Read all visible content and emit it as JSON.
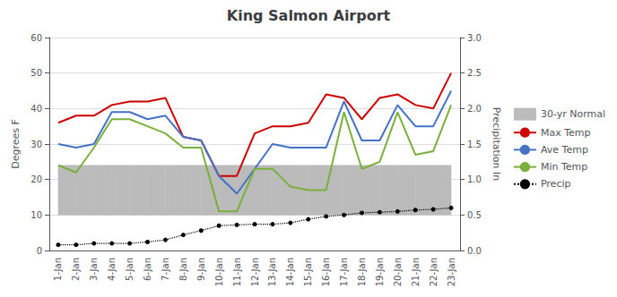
{
  "chart_data": {
    "type": "line",
    "title": "King Salmon Airport",
    "ylabel": "Degrees F",
    "y2label": "Precipitation In",
    "categories": [
      "1-Jan",
      "2-Jan",
      "3-Jan",
      "4-Jan",
      "5-Jan",
      "6-Jan",
      "7-Jan",
      "8-Jan",
      "9-Jan",
      "10-Jan",
      "11-Jan",
      "12-Jan",
      "13-Jan",
      "14-Jan",
      "15-Jan",
      "16-Jan",
      "17-Jan",
      "18-Jan",
      "19-Jan",
      "20-Jan",
      "21-Jan",
      "22-Jan",
      "23-Jan"
    ],
    "series": [
      {
        "name": "30-yr Normal",
        "type": "band",
        "color": "#BBBBBB",
        "lower": [
          10,
          10,
          10,
          10,
          10,
          10,
          10,
          10,
          10,
          10,
          10,
          10,
          10,
          10,
          10,
          10,
          10,
          10,
          10,
          10,
          10,
          10,
          10
        ],
        "upper": [
          24,
          24,
          24,
          24,
          24,
          24,
          24,
          24,
          24,
          24,
          24,
          24,
          24,
          24,
          24,
          24,
          24,
          24,
          24,
          24,
          24,
          24,
          24
        ]
      },
      {
        "name": "Max Temp",
        "type": "line",
        "color": "#CC0000",
        "values": [
          36,
          38,
          38,
          41,
          42,
          42,
          43,
          32,
          31,
          21,
          21,
          33,
          35,
          35,
          36,
          44,
          43,
          37,
          43,
          44,
          41,
          40,
          50
        ]
      },
      {
        "name": "Ave Temp",
        "type": "line",
        "color": "#4472C4",
        "values": [
          30,
          29,
          30,
          39,
          39,
          37,
          38,
          32,
          31,
          21,
          16,
          23,
          30,
          29,
          29,
          29,
          42,
          31,
          31,
          41,
          35,
          35,
          45
        ]
      },
      {
        "name": "Min Temp",
        "type": "line",
        "color": "#7AAF3C",
        "values": [
          24,
          22,
          29,
          37,
          37,
          35,
          33,
          29,
          29,
          11,
          11,
          23,
          23,
          18,
          17,
          17,
          39,
          23,
          25,
          39,
          27,
          28,
          41
        ]
      },
      {
        "name": "Precip",
        "type": "line",
        "color": "#000000",
        "axis": "y2",
        "marker": "circle",
        "line_style": "dotted",
        "values": [
          0.08,
          0.08,
          0.1,
          0.1,
          0.1,
          0.12,
          0.15,
          0.22,
          0.28,
          0.35,
          0.36,
          0.37,
          0.37,
          0.39,
          0.44,
          0.48,
          0.5,
          0.53,
          0.54,
          0.55,
          0.57,
          0.58,
          0.6
        ]
      }
    ],
    "ylim": [
      0,
      60
    ],
    "yticks": [
      0,
      10,
      20,
      30,
      40,
      50,
      60
    ],
    "y2lim": [
      0,
      3
    ],
    "y2ticks": [
      {
        "value": 0,
        "label": "0.0"
      },
      0.5,
      {
        "value": 1.0,
        "label": "1.0"
      },
      1.5,
      {
        "value": 2.0,
        "label": "2.0"
      },
      2.5,
      {
        "value": 3.0,
        "label": "3.0"
      }
    ],
    "grid": true,
    "legend": "right"
  }
}
